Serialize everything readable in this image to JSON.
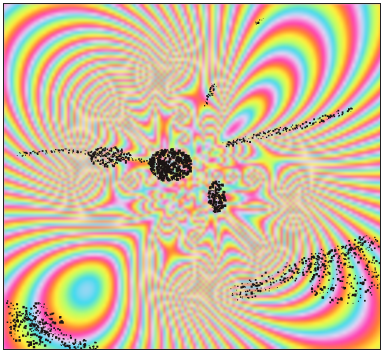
{
  "image": {
    "kind": "interferogram",
    "palette": [
      "#ff3fb8",
      "#e8d4f6",
      "#3ed9f0",
      "#b6ff6a",
      "#fff23a",
      "#ff7a2e",
      "#ff3fb8"
    ],
    "frame_color": "#222222",
    "mask_color": "#1a1414"
  }
}
